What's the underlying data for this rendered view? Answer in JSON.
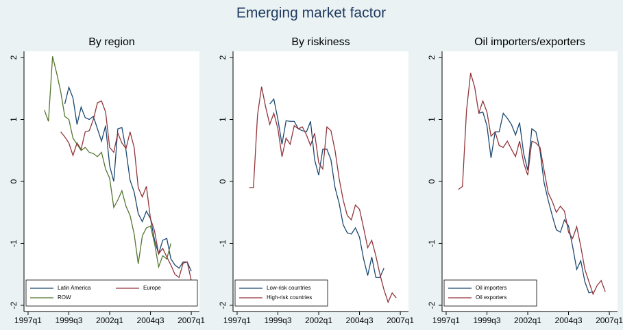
{
  "title": "Emerging market factor",
  "chart_data": [
    {
      "type": "line",
      "title": "By region",
      "x": [
        "1998q1",
        "1998q2",
        "1998q3",
        "1998q4",
        "1999q1",
        "1999q2",
        "1999q3",
        "1999q4",
        "2000q1",
        "2000q2",
        "2000q3",
        "2000q4",
        "2001q1",
        "2001q2",
        "2001q3",
        "2001q4",
        "2002q1",
        "2002q2",
        "2002q3",
        "2002q4",
        "2003q1",
        "2003q2",
        "2003q3",
        "2003q4",
        "2004q1",
        "2004q2",
        "2004q3",
        "2004q4",
        "2005q1",
        "2005q2",
        "2005q3",
        "2005q4",
        "2006q1",
        "2006q2",
        "2006q3",
        "2006q4",
        "2007q1"
      ],
      "series": [
        {
          "name": "Latin America",
          "color": "#1a476f",
          "values": [
            null,
            null,
            null,
            null,
            null,
            1.25,
            1.52,
            1.35,
            0.92,
            1.2,
            1.03,
            1.0,
            1.05,
            0.85,
            0.65,
            0.9,
            0.25,
            0.0,
            0.85,
            0.87,
            0.5,
            0.02,
            -0.17,
            -0.52,
            -0.65,
            -0.48,
            -0.6,
            -0.95,
            -1.17,
            -0.95,
            -0.92,
            -1.25,
            -1.35,
            -1.4,
            -1.3,
            -1.3,
            -1.45
          ]
        },
        {
          "name": "Europe",
          "color": "#90353b",
          "values": [
            null,
            null,
            null,
            null,
            0.8,
            0.72,
            0.62,
            0.42,
            0.62,
            0.52,
            0.8,
            0.82,
            1.0,
            1.27,
            1.3,
            1.12,
            0.55,
            0.47,
            0.78,
            0.62,
            0.53,
            0.8,
            0.55,
            -0.1,
            -0.25,
            -0.08,
            -0.6,
            -0.8,
            -1.17,
            -1.08,
            -1.22,
            -1.35,
            -1.5,
            -1.55,
            -1.32,
            -1.3,
            -1.6
          ]
        },
        {
          "name": "ROW",
          "color": "#55752f",
          "values": [
            1.15,
            0.97,
            2.02,
            1.75,
            1.45,
            1.05,
            1.0,
            0.7,
            0.6,
            0.5,
            0.55,
            0.47,
            0.45,
            0.4,
            0.47,
            0.2,
            0.05,
            -0.42,
            -0.3,
            -0.15,
            -0.4,
            -0.55,
            -0.85,
            -1.33,
            -0.88,
            -0.75,
            -0.72,
            -1.0,
            -1.38,
            -1.2,
            -1.25,
            -1.0,
            null,
            null,
            null,
            null,
            null
          ]
        }
      ],
      "xlim": [
        "1996q4",
        "2007q3"
      ],
      "xticks": [
        "1997q1",
        "1999q3",
        "2002q1",
        "2004q3",
        "2007q1"
      ],
      "ylim": [
        -2.1,
        2.1
      ],
      "yticks": [
        -2,
        -1,
        0,
        1,
        2
      ],
      "legend": "lower left"
    },
    {
      "type": "line",
      "title": "By riskiness",
      "x": [
        "1997q4",
        "1998q1",
        "1998q2",
        "1998q3",
        "1998q4",
        "1999q1",
        "1999q2",
        "1999q3",
        "1999q4",
        "2000q1",
        "2000q2",
        "2000q3",
        "2000q4",
        "2001q1",
        "2001q2",
        "2001q3",
        "2001q4",
        "2002q1",
        "2002q2",
        "2002q3",
        "2002q4",
        "2003q1",
        "2003q2",
        "2003q3",
        "2003q4",
        "2004q1",
        "2004q2",
        "2004q3",
        "2004q4",
        "2005q1",
        "2005q2",
        "2005q3",
        "2005q4",
        "2006q1",
        "2006q2",
        "2006q3",
        "2006q4",
        "2007q1"
      ],
      "series": [
        {
          "name": "Low-risk countries",
          "color": "#1a476f",
          "values": [
            null,
            null,
            null,
            null,
            null,
            1.25,
            1.33,
            1.0,
            0.6,
            0.98,
            0.97,
            0.97,
            0.85,
            0.82,
            0.8,
            0.97,
            0.35,
            0.1,
            0.52,
            0.52,
            0.35,
            -0.1,
            -0.35,
            -0.7,
            -0.83,
            -0.85,
            -0.75,
            -0.9,
            -1.25,
            -1.52,
            -1.22,
            -1.55,
            -1.55,
            -1.4,
            null,
            null,
            null,
            null
          ]
        },
        {
          "name": "High-risk countries",
          "color": "#90353b",
          "values": [
            -0.1,
            -0.1,
            1.07,
            1.53,
            1.2,
            0.92,
            1.1,
            0.85,
            0.4,
            0.7,
            0.6,
            0.9,
            0.85,
            0.88,
            0.75,
            0.58,
            0.78,
            0.3,
            0.2,
            0.88,
            0.82,
            0.5,
            0.05,
            -0.3,
            -0.55,
            -0.62,
            -0.38,
            -0.45,
            -0.75,
            -1.07,
            -0.95,
            -1.2,
            -1.5,
            -1.75,
            -1.95,
            -1.8,
            -1.88,
            null
          ]
        }
      ],
      "xlim": [
        "1996q4",
        "2007q3"
      ],
      "xticks": [
        "1997q1",
        "1999q3",
        "2002q1",
        "2004q3",
        "2007q1"
      ],
      "ylim": [
        -2.1,
        2.1
      ],
      "yticks": [
        -2,
        -1,
        0,
        1,
        2
      ],
      "legend": "lower left"
    },
    {
      "type": "line",
      "title": "Oil importers/exporters",
      "x": [
        "1997q4",
        "1998q1",
        "1998q2",
        "1998q3",
        "1998q4",
        "1999q1",
        "1999q2",
        "1999q3",
        "1999q4",
        "2000q1",
        "2000q2",
        "2000q3",
        "2000q4",
        "2001q1",
        "2001q2",
        "2001q3",
        "2001q4",
        "2002q1",
        "2002q2",
        "2002q3",
        "2002q4",
        "2003q1",
        "2003q2",
        "2003q3",
        "2003q4",
        "2004q1",
        "2004q2",
        "2004q3",
        "2004q4",
        "2005q1",
        "2005q2",
        "2005q3",
        "2005q4",
        "2006q1",
        "2006q2",
        "2006q3",
        "2006q4",
        "2007q1"
      ],
      "series": [
        {
          "name": "Oil importers",
          "color": "#1a476f",
          "values": [
            null,
            null,
            null,
            null,
            null,
            1.1,
            1.12,
            0.9,
            0.38,
            0.8,
            0.8,
            1.1,
            1.02,
            0.92,
            0.75,
            0.95,
            0.45,
            0.18,
            0.85,
            0.8,
            0.5,
            -0.02,
            -0.3,
            -0.55,
            -0.78,
            -0.82,
            -0.62,
            -0.72,
            -1.05,
            -1.42,
            -1.28,
            -1.62,
            -1.8,
            -1.78,
            null,
            null,
            null,
            null
          ]
        },
        {
          "name": "Oil exporters",
          "color": "#90353b",
          "values": [
            -0.13,
            -0.08,
            1.15,
            1.75,
            1.52,
            1.1,
            1.3,
            1.12,
            0.73,
            0.8,
            0.58,
            0.55,
            0.65,
            0.52,
            0.4,
            0.65,
            0.3,
            0.1,
            0.65,
            0.62,
            0.55,
            0.18,
            -0.18,
            -0.32,
            -0.5,
            -0.4,
            -0.48,
            -0.82,
            -0.92,
            -0.73,
            -1.05,
            -1.42,
            -1.62,
            -1.82,
            -1.68,
            -1.6,
            -1.78,
            null
          ]
        }
      ],
      "xlim": [
        "1996q4",
        "2007q3"
      ],
      "xticks": [
        "1997q1",
        "1999q3",
        "2002q1",
        "2004q3",
        "2007q1"
      ],
      "ylim": [
        -2.1,
        2.1
      ],
      "yticks": [
        -2,
        -1,
        0,
        1,
        2
      ],
      "legend": "lower left"
    }
  ]
}
